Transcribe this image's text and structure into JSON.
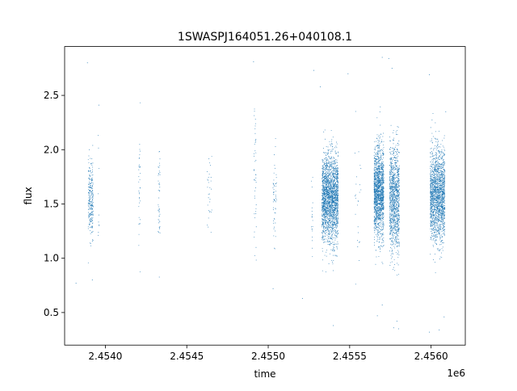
{
  "chart_data": {
    "type": "scatter",
    "title": "1SWASPJ164051.26+040108.1",
    "xlabel": "time",
    "ylabel": "flux",
    "x_offset_label": "1e6",
    "xlim": [
      2453750,
      2456210
    ],
    "ylim": [
      0.2,
      2.95
    ],
    "x_ticks": [
      2453500,
      2454000,
      2454500,
      2455000,
      2455500,
      2456000
    ],
    "x_tick_labels": [
      "2.4540",
      "2.4545",
      "2.4550",
      "2.4555",
      "2.4560"
    ],
    "x_tick_values": [
      2454000,
      2454500,
      2455000,
      2455500,
      2456000
    ],
    "y_ticks": [
      0.5,
      1.0,
      1.5,
      2.0,
      2.5
    ],
    "y_tick_labels": [
      "0.5",
      "1.0",
      "1.5",
      "2.0",
      "2.5"
    ],
    "grid": false,
    "point_color": "#1f77b4",
    "clusters": [
      {
        "x_center": 2453910,
        "x_width": 30,
        "n": 260,
        "y_mean": 1.55,
        "y_sd": 0.17
      },
      {
        "x_center": 2453960,
        "x_width": 8,
        "n": 10,
        "y_mean": 1.45,
        "y_sd": 0.25
      },
      {
        "x_center": 2454210,
        "x_width": 10,
        "n": 35,
        "y_mean": 1.6,
        "y_sd": 0.3
      },
      {
        "x_center": 2454330,
        "x_width": 12,
        "n": 45,
        "y_mean": 1.55,
        "y_sd": 0.25
      },
      {
        "x_center": 2454640,
        "x_width": 30,
        "n": 30,
        "y_mean": 1.55,
        "y_sd": 0.25
      },
      {
        "x_center": 2454920,
        "x_width": 14,
        "n": 45,
        "y_mean": 1.7,
        "y_sd": 0.28
      },
      {
        "x_center": 2455040,
        "x_width": 22,
        "n": 55,
        "y_mean": 1.55,
        "y_sd": 0.25
      },
      {
        "x_center": 2455270,
        "x_width": 10,
        "n": 20,
        "y_mean": 1.4,
        "y_sd": 0.25
      },
      {
        "x_center": 2455380,
        "x_width": 100,
        "n": 2200,
        "y_mean": 1.55,
        "y_sd": 0.2
      },
      {
        "x_center": 2455550,
        "x_width": 40,
        "n": 25,
        "y_mean": 1.5,
        "y_sd": 0.35
      },
      {
        "x_center": 2455680,
        "x_width": 60,
        "n": 1600,
        "y_mean": 1.6,
        "y_sd": 0.21
      },
      {
        "x_center": 2455775,
        "x_width": 60,
        "n": 1100,
        "y_mean": 1.55,
        "y_sd": 0.24
      },
      {
        "x_center": 2456040,
        "x_width": 90,
        "n": 1800,
        "y_mean": 1.58,
        "y_sd": 0.21
      }
    ],
    "outliers": [
      [
        2453890,
        2.8
      ],
      [
        2453820,
        0.77
      ],
      [
        2453960,
        2.41
      ],
      [
        2453920,
        0.8
      ],
      [
        2454910,
        2.81
      ],
      [
        2455030,
        0.72
      ],
      [
        2455280,
        2.73
      ],
      [
        2455400,
        0.38
      ],
      [
        2455700,
        2.85
      ],
      [
        2455740,
        2.84
      ],
      [
        2455670,
        0.47
      ],
      [
        2455700,
        0.57
      ],
      [
        2455770,
        0.36
      ],
      [
        2455800,
        0.35
      ],
      [
        2455790,
        0.42
      ],
      [
        2455990,
        0.32
      ],
      [
        2456050,
        0.34
      ],
      [
        2456080,
        0.46
      ],
      [
        2455760,
        2.75
      ],
      [
        2456090,
        2.35
      ],
      [
        2455210,
        0.63
      ],
      [
        2455320,
        2.58
      ],
      [
        2455490,
        2.7
      ],
      [
        2455990,
        2.69
      ]
    ]
  }
}
